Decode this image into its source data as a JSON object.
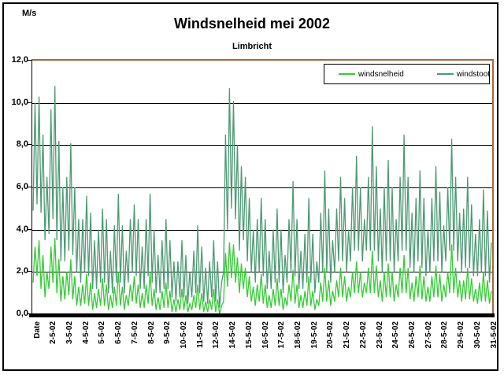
{
  "chart": {
    "unit_label": "M/s",
    "title": "Windsnelheid mei 2002",
    "subtitle": "Limbricht",
    "colors": {
      "windsnelheid": "#33cc33",
      "windstoot": "#4d9973",
      "plot_border": "#a5693d",
      "grid": "#000000",
      "background": "#ffffff",
      "frame_border": "#000000"
    }
  },
  "chart_data": {
    "type": "line",
    "title": "Windsnelheid mei 2002",
    "subtitle": "Limbricht",
    "ylabel": "M/s",
    "xlabel": "Date",
    "ylim": [
      0,
      12
    ],
    "ytick_labels": [
      "0,0",
      "2,0",
      "4,0",
      "6,0",
      "8,0",
      "10,0",
      "12,0"
    ],
    "grid": "horizontal",
    "legend_position": "top-right-inside",
    "x_axis_labels": [
      "Date",
      "2-5-02",
      "3-5-02",
      "4-5-02",
      "5-5-02",
      "6-5-02",
      "7-5-02",
      "8-5-02",
      "9-5-02",
      "10-5-02",
      "11-5-02",
      "12-5-02",
      "14-5-02",
      "15-5-02",
      "16-5-02",
      "17-5-02",
      "18-5-02",
      "19-5-02",
      "20-5-02",
      "21-5-02",
      "22-5-02",
      "23-5-02",
      "24-5-02",
      "26-5-02",
      "27-5-02",
      "28-5-02",
      "29-5-02",
      "30-5-02",
      "31-5-02"
    ],
    "samples_per_label": 8,
    "units": "M/s",
    "series": [
      {
        "name": "windsnelheid",
        "color": "#33cc33",
        "values": [
          1.5,
          3.2,
          1.8,
          3.5,
          1.2,
          2.8,
          0.8,
          2.0,
          1.2,
          3.2,
          1.5,
          3.6,
          1.0,
          2.6,
          0.6,
          1.8,
          0.7,
          2.0,
          0.9,
          2.6,
          0.7,
          1.8,
          0.4,
          1.3,
          0.4,
          1.4,
          0.5,
          1.9,
          0.4,
          1.5,
          0.2,
          1.0,
          0.3,
          1.2,
          0.4,
          1.7,
          0.4,
          1.4,
          0.2,
          0.9,
          0.3,
          1.3,
          0.4,
          2.0,
          0.4,
          1.3,
          0.2,
          0.9,
          0.4,
          1.4,
          0.6,
          1.8,
          0.5,
          1.4,
          0.3,
          1.0,
          0.3,
          1.4,
          0.5,
          2.0,
          0.4,
          1.2,
          0.2,
          0.8,
          0.2,
          1.1,
          0.3,
          1.5,
          0.3,
          1.1,
          0.1,
          0.7,
          0.1,
          0.7,
          0.2,
          1.2,
          0.2,
          0.9,
          0.1,
          0.5,
          0.2,
          0.9,
          0.3,
          1.4,
          0.2,
          1.0,
          0.1,
          0.6,
          0.1,
          0.7,
          0.2,
          1.2,
          0.1,
          0.7,
          0.0,
          0.4,
          0.6,
          2.9,
          1.3,
          3.4,
          1.7,
          3.3,
          1.5,
          2.7,
          1.0,
          2.4,
          1.2,
          2.2,
          0.8,
          1.8,
          0.6,
          1.3,
          0.4,
          1.4,
          0.6,
          1.9,
          0.5,
          1.4,
          0.3,
          0.9,
          0.3,
          1.2,
          0.4,
          1.7,
          0.4,
          1.2,
          0.2,
          0.8,
          0.4,
          1.4,
          0.6,
          2.1,
          0.5,
          1.4,
          0.3,
          0.9,
          0.3,
          1.1,
          0.4,
          1.8,
          0.4,
          1.1,
          0.2,
          0.7,
          0.4,
          1.5,
          0.6,
          2.2,
          0.6,
          1.6,
          0.4,
          1.1,
          0.6,
          1.6,
          0.8,
          2.2,
          0.8,
          1.8,
          0.6,
          1.3,
          0.8,
          2.0,
          1.0,
          2.5,
          1.0,
          2.0,
          0.8,
          1.5,
          1.0,
          2.2,
          1.0,
          3.0,
          1.0,
          2.3,
          0.8,
          1.6,
          0.6,
          2.0,
          0.8,
          2.4,
          0.8,
          2.0,
          0.6,
          1.4,
          0.8,
          2.2,
          1.0,
          2.8,
          1.0,
          2.2,
          0.7,
          1.5,
          0.6,
          1.8,
          0.8,
          2.3,
          0.7,
          1.8,
          0.6,
          1.3,
          0.6,
          1.8,
          0.8,
          2.3,
          0.8,
          1.9,
          0.6,
          1.4,
          0.8,
          2.0,
          1.0,
          3.3,
          1.0,
          2.2,
          0.8,
          1.6,
          0.6,
          1.6,
          0.7,
          2.2,
          0.7,
          1.7,
          0.6,
          1.2,
          0.5,
          1.5,
          0.6,
          2.0,
          0.6,
          1.6,
          0.5,
          1.1
        ]
      },
      {
        "name": "windstoot",
        "color": "#4d9973",
        "values": [
          4.9,
          10.0,
          5.2,
          10.3,
          4.8,
          8.5,
          3.5,
          6.5,
          3.8,
          9.7,
          4.5,
          10.8,
          3.5,
          8.2,
          2.5,
          6.0,
          2.5,
          6.5,
          3.0,
          8.1,
          2.8,
          6.0,
          2.0,
          4.5,
          1.5,
          4.5,
          2.0,
          5.6,
          1.8,
          4.8,
          1.2,
          3.5,
          1.2,
          4.0,
          1.5,
          5.0,
          1.5,
          4.5,
          1.0,
          3.0,
          1.0,
          4.2,
          1.5,
          5.7,
          1.5,
          4.2,
          1.0,
          3.0,
          1.5,
          4.5,
          2.0,
          5.2,
          1.8,
          4.5,
          1.2,
          3.2,
          1.2,
          4.5,
          1.8,
          5.7,
          1.5,
          4.0,
          1.0,
          2.8,
          1.0,
          3.5,
          1.2,
          4.5,
          1.2,
          3.5,
          0.8,
          2.5,
          0.6,
          2.5,
          0.8,
          3.5,
          0.8,
          2.8,
          0.5,
          2.0,
          0.8,
          3.0,
          1.0,
          4.2,
          1.0,
          3.2,
          0.6,
          2.2,
          0.5,
          2.5,
          0.8,
          3.5,
          0.6,
          2.5,
          0.3,
          1.5,
          2.0,
          8.5,
          4.0,
          10.7,
          5.0,
          10.1,
          4.5,
          8.0,
          3.0,
          7.0,
          3.5,
          6.5,
          2.5,
          5.5,
          2.0,
          4.0,
          1.5,
          4.5,
          2.0,
          5.5,
          1.8,
          4.5,
          1.2,
          3.0,
          1.2,
          4.0,
          1.5,
          5.0,
          1.5,
          4.0,
          1.0,
          2.8,
          1.5,
          4.5,
          2.0,
          6.3,
          1.8,
          4.5,
          1.2,
          3.0,
          1.2,
          3.8,
          1.5,
          5.5,
          1.5,
          3.8,
          1.0,
          2.5,
          1.5,
          4.8,
          2.0,
          6.8,
          2.0,
          5.0,
          1.5,
          3.5,
          2.0,
          5.0,
          2.5,
          6.5,
          2.5,
          5.5,
          2.0,
          4.0,
          2.5,
          6.0,
          3.0,
          7.5,
          3.0,
          6.0,
          2.5,
          4.5,
          3.0,
          6.5,
          3.0,
          8.9,
          3.0,
          7.0,
          2.5,
          5.0,
          2.0,
          6.0,
          2.5,
          7.3,
          2.5,
          6.0,
          2.0,
          4.5,
          2.5,
          6.5,
          3.0,
          8.5,
          3.0,
          6.5,
          2.2,
          4.8,
          2.0,
          5.5,
          2.5,
          6.8,
          2.2,
          5.5,
          1.8,
          4.0,
          2.0,
          5.5,
          2.5,
          7.0,
          2.5,
          5.8,
          2.0,
          4.2,
          2.5,
          6.0,
          3.0,
          8.3,
          3.0,
          6.5,
          2.5,
          4.8,
          2.0,
          5.0,
          2.2,
          6.5,
          2.2,
          5.2,
          1.8,
          3.8,
          1.8,
          4.5,
          2.0,
          5.9,
          1.8,
          4.9,
          1.5,
          3.4
        ]
      }
    ]
  }
}
